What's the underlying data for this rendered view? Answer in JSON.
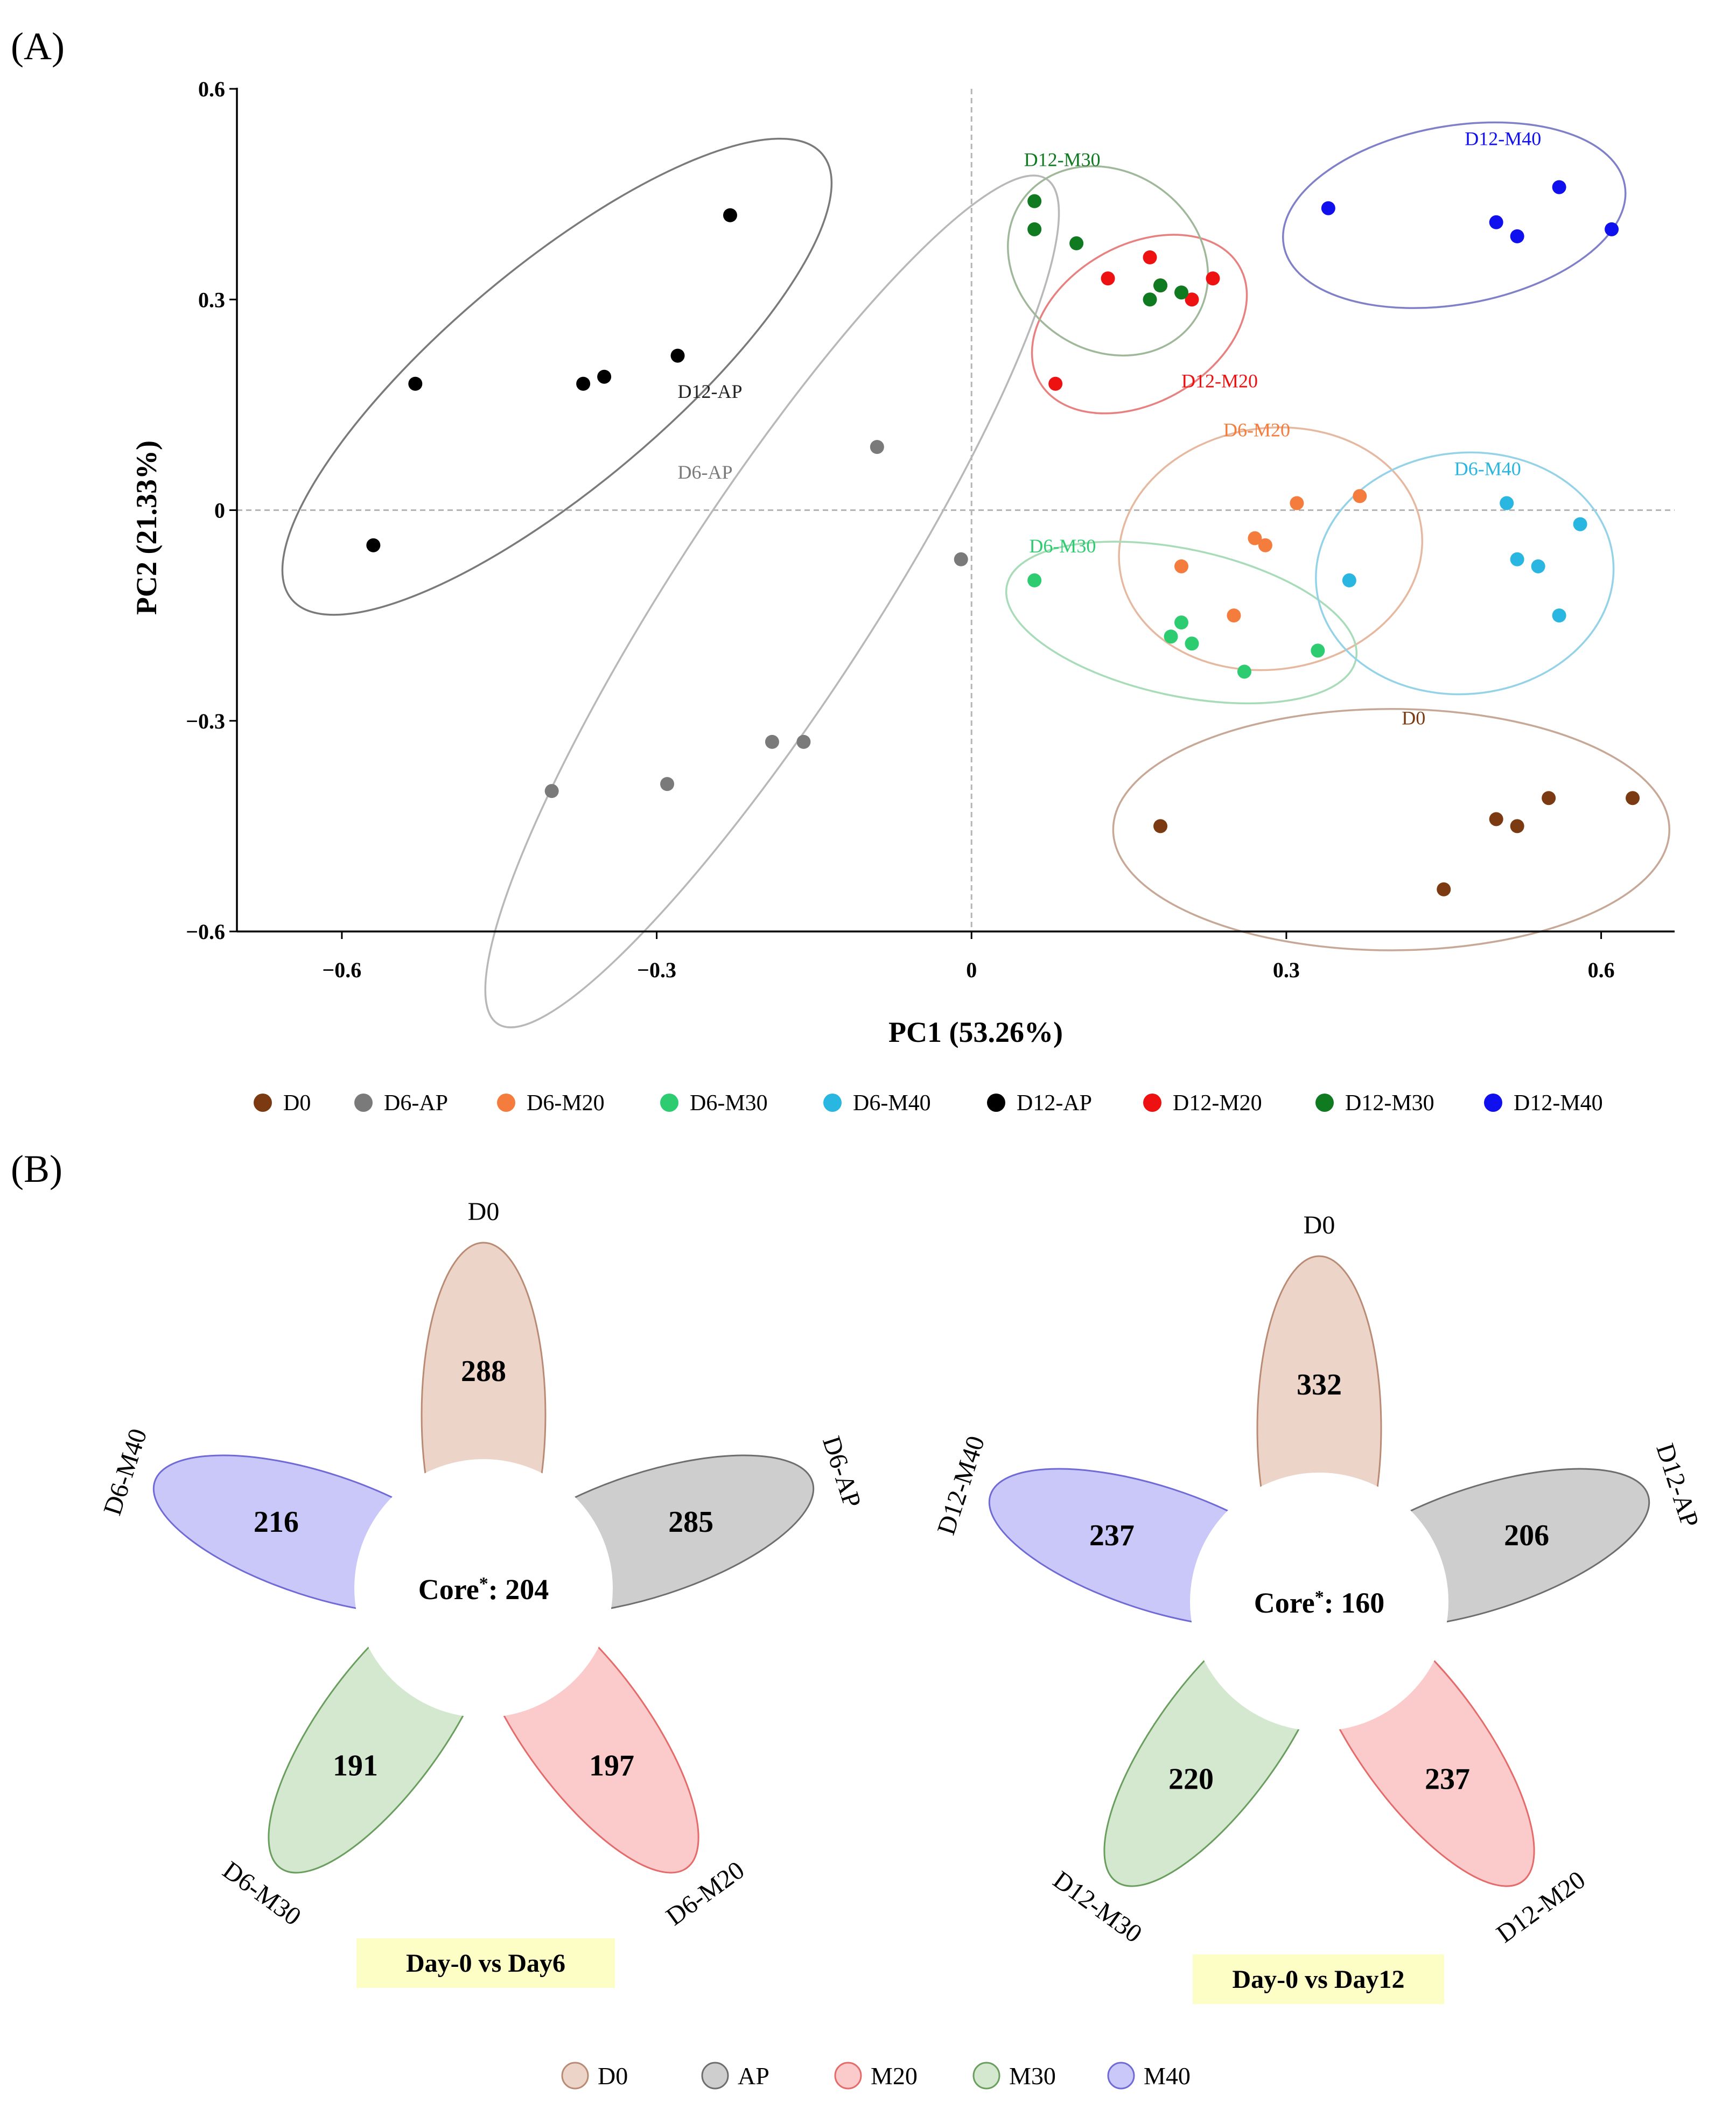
{
  "chart_data": [
    {
      "panel_label": "(A)",
      "type": "scatter",
      "xlabel": "PC1 (53.26%)",
      "ylabel": "PC2 (21.33%)",
      "xlim": [
        -0.7,
        0.67
      ],
      "ylim": [
        -0.6,
        0.6
      ],
      "xticks": [
        -0.6,
        -0.3,
        0,
        0.3,
        0.6
      ],
      "xtick_labels": [
        "−0.6",
        "−0.3",
        "0",
        "0.3",
        "0.6"
      ],
      "yticks": [
        -0.6,
        -0.3,
        0,
        0.3,
        0.6
      ],
      "ytick_labels": [
        "−0.6",
        "−0.3",
        "0",
        "0.3",
        "0.6"
      ],
      "reference_lines": {
        "x": 0,
        "y": 0,
        "style": "dashed"
      },
      "legend_placement": "bottom",
      "series": [
        {
          "name": "D0",
          "color": "#7b3a11",
          "ellipse_color": "#c7a896",
          "points": [
            [
              0.18,
              -0.45
            ],
            [
              0.45,
              -0.54
            ],
            [
              0.5,
              -0.44
            ],
            [
              0.52,
              -0.45
            ],
            [
              0.55,
              -0.41
            ],
            [
              0.63,
              -0.41
            ]
          ],
          "ellipse": {
            "center": [
              0.4,
              -0.455
            ],
            "rx": 0.265,
            "ry": 0.115,
            "angle": 0
          }
        },
        {
          "name": "D6-AP",
          "color": "#7a7a7a",
          "ellipse_color": "#b8b8b8",
          "points": [
            [
              -0.09,
              0.09
            ],
            [
              -0.01,
              -0.07
            ],
            [
              -0.16,
              -0.33
            ],
            [
              -0.19,
              -0.33
            ],
            [
              -0.29,
              -0.39
            ],
            [
              -0.4,
              -0.4
            ]
          ],
          "ellipse": {
            "center": [
              -0.19,
              -0.13
            ],
            "rx": 0.48,
            "ry": 0.095,
            "angle": 57
          }
        },
        {
          "name": "D6-M20",
          "color": "#f47c3c",
          "ellipse_color": "#e6b8a0",
          "points": [
            [
              0.31,
              0.01
            ],
            [
              0.37,
              0.02
            ],
            [
              0.27,
              -0.04
            ],
            [
              0.28,
              -0.05
            ],
            [
              0.2,
              -0.08
            ],
            [
              0.25,
              -0.15
            ]
          ],
          "ellipse": {
            "center": [
              0.285,
              -0.055
            ],
            "rx": 0.145,
            "ry": 0.115,
            "angle": 8
          }
        },
        {
          "name": "D6-M30",
          "color": "#2ecc71",
          "ellipse_color": "#a8dcb8",
          "points": [
            [
              0.06,
              -0.1
            ],
            [
              0.2,
              -0.16
            ],
            [
              0.19,
              -0.18
            ],
            [
              0.21,
              -0.19
            ],
            [
              0.26,
              -0.23
            ],
            [
              0.33,
              -0.2
            ]
          ],
          "ellipse": {
            "center": [
              0.2,
              -0.16
            ],
            "rx": 0.17,
            "ry": 0.07,
            "angle": -12
          }
        },
        {
          "name": "D6-M40",
          "color": "#29b6e0",
          "ellipse_color": "#94d2e8",
          "points": [
            [
              0.51,
              0.01
            ],
            [
              0.58,
              -0.02
            ],
            [
              0.52,
              -0.07
            ],
            [
              0.54,
              -0.08
            ],
            [
              0.36,
              -0.1
            ],
            [
              0.56,
              -0.15
            ]
          ],
          "ellipse": {
            "center": [
              0.47,
              -0.09
            ],
            "rx": 0.142,
            "ry": 0.115,
            "angle": 5
          }
        },
        {
          "name": "D12-AP",
          "color": "#000000",
          "ellipse_color": "#7a7a7a",
          "points": [
            [
              -0.23,
              0.42
            ],
            [
              -0.28,
              0.22
            ],
            [
              -0.35,
              0.19
            ],
            [
              -0.37,
              0.18
            ],
            [
              -0.53,
              0.18
            ],
            [
              -0.57,
              -0.05
            ]
          ],
          "ellipse": {
            "center": [
              -0.395,
              0.19
            ],
            "rx": 0.33,
            "ry": 0.105,
            "angle": 40
          }
        },
        {
          "name": "D12-M20",
          "color": "#ee1111",
          "ellipse_color": "#e88080",
          "points": [
            [
              0.17,
              0.36
            ],
            [
              0.13,
              0.33
            ],
            [
              0.18,
              0.32
            ],
            [
              0.23,
              0.33
            ],
            [
              0.21,
              0.3
            ],
            [
              0.08,
              0.18
            ]
          ],
          "ellipse": {
            "center": [
              0.16,
              0.265
            ],
            "rx": 0.11,
            "ry": 0.075,
            "angle": 30
          }
        },
        {
          "name": "D12-M30",
          "color": "#107a20",
          "ellipse_color": "#a0b89a",
          "points": [
            [
              0.06,
              0.44
            ],
            [
              0.06,
              0.4
            ],
            [
              0.1,
              0.38
            ],
            [
              0.18,
              0.32
            ],
            [
              0.2,
              0.31
            ],
            [
              0.17,
              0.3
            ]
          ],
          "ellipse": {
            "center": [
              0.13,
              0.355
            ],
            "rx": 0.1,
            "ry": 0.085,
            "angle": -35
          }
        },
        {
          "name": "D12-M40",
          "color": "#1010ee",
          "ellipse_color": "#8080c8",
          "points": [
            [
              0.34,
              0.43
            ],
            [
              0.5,
              0.41
            ],
            [
              0.52,
              0.39
            ],
            [
              0.56,
              0.46
            ],
            [
              0.61,
              0.4
            ]
          ],
          "ellipse": {
            "center": [
              0.46,
              0.42
            ],
            "rx": 0.165,
            "ry": 0.085,
            "angle": 10
          }
        }
      ],
      "group_labels": [
        {
          "text": "D12-AP",
          "color": "#222222",
          "x": -0.28,
          "y": 0.16
        },
        {
          "text": "D6-AP",
          "color": "#7a7a7a",
          "x": -0.28,
          "y": 0.045
        },
        {
          "text": "D12-M30",
          "color": "#107a20",
          "x": 0.05,
          "y": 0.49
        },
        {
          "text": "D12-M20",
          "color": "#ee1111",
          "x": 0.2,
          "y": 0.175
        },
        {
          "text": "D12-M40",
          "color": "#1010ee",
          "x": 0.47,
          "y": 0.52
        },
        {
          "text": "D6-M20",
          "color": "#f47c3c",
          "x": 0.24,
          "y": 0.105
        },
        {
          "text": "D6-M40",
          "color": "#29b6e0",
          "x": 0.46,
          "y": 0.05
        },
        {
          "text": "D6-M30",
          "color": "#2ecc71",
          "x": 0.055,
          "y": -0.06
        },
        {
          "text": "D0",
          "color": "#7b3a11",
          "x": 0.41,
          "y": -0.305
        }
      ]
    },
    {
      "panel_label": "(B)",
      "type": "flower",
      "charts": [
        {
          "title": "Day-0 vs Day6",
          "core_label": "Core",
          "core_marker": "*",
          "core_value": "204",
          "petals": [
            {
              "name": "D0",
              "value": "288",
              "category": "D0"
            },
            {
              "name": "D6-AP",
              "value": "285",
              "category": "AP"
            },
            {
              "name": "D6-M20",
              "value": "197",
              "category": "M20"
            },
            {
              "name": "D6-M30",
              "value": "191",
              "category": "M30"
            },
            {
              "name": "D6-M40",
              "value": "216",
              "category": "M40"
            }
          ]
        },
        {
          "title": "Day-0 vs Day12",
          "core_label": "Core",
          "core_marker": "*",
          "core_value": "160",
          "petals": [
            {
              "name": "D0",
              "value": "332",
              "category": "D0"
            },
            {
              "name": "D12-AP",
              "value": "206",
              "category": "AP"
            },
            {
              "name": "D12-M20",
              "value": "237",
              "category": "M20"
            },
            {
              "name": "D12-M30",
              "value": "220",
              "category": "M30"
            },
            {
              "name": "D12-M40",
              "value": "237",
              "category": "M40"
            }
          ]
        }
      ],
      "categories": [
        {
          "name": "D0",
          "fill": "#ecd4c8",
          "stroke": "#b98b74"
        },
        {
          "name": "AP",
          "fill": "#cecece",
          "stroke": "#6e6e6e"
        },
        {
          "name": "M20",
          "fill": "#fbcaca",
          "stroke": "#e56a6a"
        },
        {
          "name": "M30",
          "fill": "#d3e8cf",
          "stroke": "#6a9e5f"
        },
        {
          "name": "M40",
          "fill": "#c9c8f8",
          "stroke": "#6f6ad6"
        }
      ],
      "legend_placement": "bottom"
    }
  ]
}
